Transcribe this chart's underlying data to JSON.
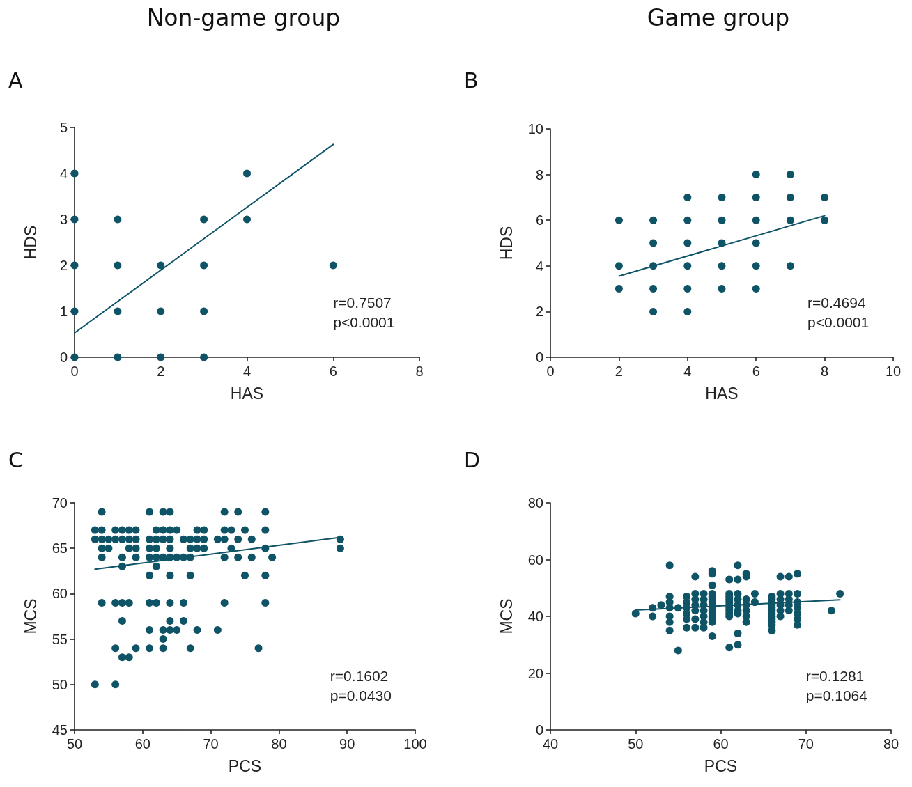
{
  "chart_data": [
    {
      "type": "scatter",
      "title": "Non-game group",
      "subtitle": "A",
      "xlabel": "HAS",
      "ylabel": "HDS",
      "xlim": [
        0,
        8
      ],
      "xticks": [
        0,
        2,
        4,
        6,
        8
      ],
      "ylim": [
        0,
        5
      ],
      "yticks": [
        0,
        1,
        2,
        3,
        4,
        5
      ],
      "grid": false,
      "marker": "circle",
      "annotations": [
        "r=0.7507",
        "p<0.0001"
      ],
      "series": [
        {
          "color": "#0e5466",
          "x": [
            0,
            0,
            0,
            0,
            0,
            1,
            1,
            1,
            1,
            2,
            2,
            2,
            3,
            3,
            3,
            3,
            4,
            4,
            6
          ],
          "values": [
            0,
            1,
            2,
            3,
            4,
            0,
            1,
            2,
            3,
            0,
            1,
            2,
            0,
            1,
            2,
            3,
            3,
            4,
            2
          ]
        },
        {
          "type": "line",
          "marker": "none",
          "color": "#0e5466",
          "x": [
            0,
            6
          ],
          "values": [
            0.53,
            4.63
          ]
        }
      ]
    },
    {
      "type": "scatter",
      "title": "Game group",
      "subtitle": "B",
      "xlabel": "HAS",
      "ylabel": "HDS",
      "xlim": [
        0,
        10
      ],
      "xticks": [
        0,
        2,
        4,
        6,
        8,
        10
      ],
      "ylim": [
        0,
        10
      ],
      "yticks": [
        0,
        2,
        4,
        6,
        8,
        10
      ],
      "grid": false,
      "marker": "circle",
      "annotations": [
        "r=0.4694",
        "p<0.0001"
      ],
      "series": [
        {
          "color": "#0e5466",
          "x": [
            2,
            2,
            2,
            3,
            3,
            3,
            3,
            3,
            4,
            4,
            4,
            4,
            4,
            4,
            5,
            5,
            5,
            5,
            5,
            6,
            6,
            6,
            6,
            6,
            6,
            7,
            7,
            7,
            7,
            8,
            8
          ],
          "values": [
            3,
            4,
            6,
            2,
            3,
            4,
            5,
            6,
            2,
            3,
            4,
            5,
            6,
            7,
            3,
            4,
            5,
            6,
            7,
            3,
            4,
            5,
            6,
            7,
            8,
            4,
            6,
            7,
            8,
            6,
            7
          ]
        },
        {
          "type": "line",
          "marker": "none",
          "color": "#0e5466",
          "x": [
            2,
            8
          ],
          "values": [
            3.55,
            6.2
          ]
        }
      ]
    },
    {
      "type": "scatter",
      "subtitle": "C",
      "xlabel": "PCS",
      "ylabel": "MCS",
      "xlim": [
        50,
        100
      ],
      "xticks": [
        50,
        60,
        70,
        80,
        90,
        100
      ],
      "ylim": [
        45,
        70
      ],
      "yticks": [
        45,
        50,
        55,
        60,
        65,
        70
      ],
      "grid": false,
      "marker": "circle",
      "annotations": [
        "r=0.1602",
        "p=0.0430"
      ],
      "series": [
        {
          "color": "#0e5466",
          "x": [
            53,
            53,
            53,
            54,
            54,
            54,
            54,
            54,
            54,
            55,
            55,
            56,
            56,
            56,
            56,
            56,
            57,
            57,
            57,
            57,
            57,
            57,
            57,
            58,
            58,
            58,
            58,
            58,
            59,
            59,
            59,
            59,
            59,
            61,
            61,
            61,
            61,
            61,
            61,
            61,
            61,
            62,
            62,
            62,
            62,
            62,
            62,
            63,
            63,
            63,
            63,
            63,
            63,
            63,
            64,
            64,
            64,
            64,
            64,
            64,
            64,
            64,
            64,
            65,
            65,
            65,
            66,
            66,
            66,
            66,
            67,
            67,
            67,
            67,
            67,
            68,
            68,
            68,
            68,
            69,
            69,
            69,
            71,
            71,
            72,
            72,
            72,
            72,
            72,
            73,
            73,
            74,
            74,
            74,
            75,
            75,
            76,
            76,
            77,
            78,
            78,
            78,
            78,
            78,
            79,
            89,
            89
          ],
          "values": [
            67,
            66,
            50,
            69,
            67,
            66,
            65,
            64,
            59,
            66,
            65,
            67,
            66,
            59,
            54,
            50,
            67,
            66,
            64,
            63,
            59,
            57,
            53,
            67,
            66,
            65,
            59,
            53,
            67,
            66,
            65,
            64,
            54,
            69,
            66,
            65,
            64,
            62,
            59,
            56,
            54,
            67,
            66,
            65,
            64,
            63,
            59,
            69,
            67,
            66,
            64,
            56,
            55,
            54,
            69,
            67,
            66,
            65,
            64,
            62,
            59,
            57,
            56,
            67,
            64,
            56,
            66,
            64,
            59,
            57,
            66,
            65,
            64,
            62,
            54,
            67,
            66,
            65,
            56,
            67,
            66,
            65,
            66,
            56,
            69,
            67,
            66,
            64,
            59,
            67,
            65,
            69,
            66,
            64,
            67,
            62,
            66,
            64,
            54,
            69,
            67,
            65,
            62,
            59,
            64,
            66,
            65
          ]
        },
        {
          "type": "line",
          "marker": "none",
          "color": "#0e5466",
          "x": [
            53,
            89
          ],
          "values": [
            62.7,
            66.2
          ]
        }
      ]
    },
    {
      "type": "scatter",
      "subtitle": "D",
      "xlabel": "PCS",
      "ylabel": "MCS",
      "xlim": [
        40,
        80
      ],
      "xticks": [
        40,
        50,
        60,
        70,
        80
      ],
      "ylim": [
        0,
        80
      ],
      "yticks": [
        0,
        20,
        40,
        60,
        80
      ],
      "grid": false,
      "marker": "circle",
      "annotations": [
        "r=0.1281",
        "p=0.1064"
      ],
      "series": [
        {
          "color": "#0e5466",
          "x": [
            50,
            52,
            52,
            53,
            54,
            54,
            54,
            54,
            54,
            54,
            54,
            55,
            55,
            56,
            56,
            56,
            56,
            56,
            56,
            57,
            57,
            57,
            57,
            57,
            57,
            57,
            58,
            58,
            58,
            58,
            58,
            58,
            58,
            59,
            59,
            59,
            59,
            59,
            59,
            59,
            59,
            59,
            59,
            59,
            59,
            59,
            59,
            59,
            61,
            61,
            61,
            61,
            61,
            61,
            61,
            61,
            61,
            61,
            61,
            62,
            62,
            62,
            62,
            62,
            62,
            62,
            62,
            62,
            63,
            63,
            63,
            63,
            63,
            63,
            63,
            64,
            64,
            66,
            66,
            66,
            66,
            66,
            66,
            66,
            66,
            66,
            66,
            66,
            66,
            67,
            67,
            67,
            67,
            67,
            67,
            68,
            68,
            68,
            68,
            68,
            69,
            69,
            69,
            69,
            69,
            69,
            69,
            73,
            74
          ],
          "values": [
            41,
            43,
            40,
            44,
            58,
            47,
            45,
            43,
            40,
            38,
            35,
            43,
            28,
            47,
            45,
            43,
            41,
            39,
            36,
            54,
            48,
            46,
            44,
            42,
            39,
            36,
            48,
            46,
            44,
            42,
            40,
            38,
            36,
            56,
            55,
            51,
            48,
            47,
            46,
            45,
            44,
            43,
            42,
            41,
            40,
            39,
            38,
            33,
            53,
            48,
            47,
            46,
            45,
            44,
            43,
            42,
            41,
            40,
            29,
            58,
            53,
            48,
            46,
            44,
            42,
            41,
            34,
            30,
            55,
            54,
            46,
            44,
            42,
            40,
            38,
            48,
            45,
            47,
            46,
            45,
            44,
            43,
            42,
            41,
            40,
            39,
            38,
            37,
            35,
            54,
            48,
            46,
            44,
            42,
            40,
            54,
            48,
            46,
            44,
            42,
            55,
            48,
            45,
            43,
            41,
            39,
            37,
            42,
            48
          ]
        },
        {
          "type": "line",
          "marker": "none",
          "color": "#0e5466",
          "x": [
            50,
            74
          ],
          "values": [
            42.2,
            45.8
          ]
        }
      ]
    }
  ]
}
